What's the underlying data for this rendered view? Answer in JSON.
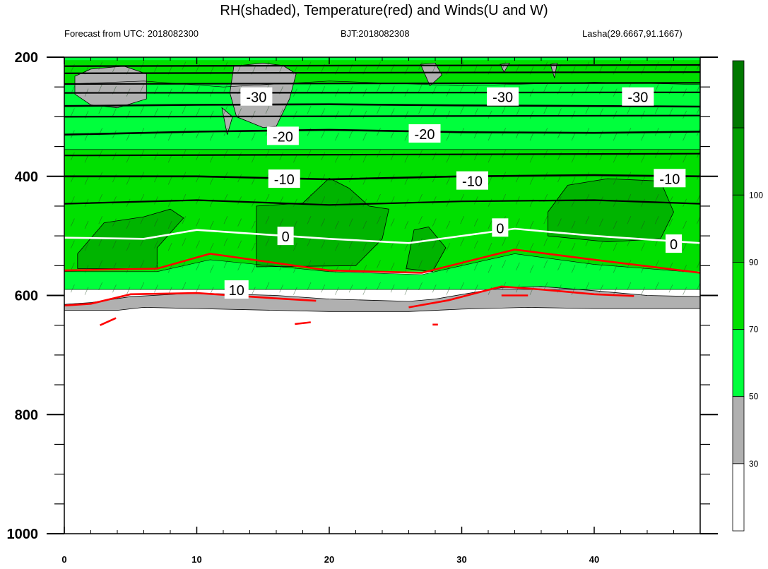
{
  "title": "RH(shaded), Temperature(red) and Winds(U and W)",
  "subtitle_left": "Forecast from UTC: 2018082300",
  "subtitle_center": "BJT:2018082308",
  "subtitle_right": "Lasha(29.6667,91.1667)",
  "chart_data": {
    "type": "contour",
    "xlabel": "",
    "ylabel": "",
    "xlim": [
      0,
      48
    ],
    "ylim": [
      200,
      1000
    ],
    "y_inverted": true,
    "x_ticks": [
      "0",
      "10",
      "20",
      "30",
      "40"
    ],
    "x_tick_values": [
      0,
      10,
      20,
      30,
      40
    ],
    "y_ticks": [
      "200",
      "400",
      "600",
      "800",
      "1000"
    ],
    "y_tick_values": [
      200,
      400,
      600,
      800,
      1000
    ],
    "grid": false,
    "colorbar": {
      "labels": [
        "30",
        "50",
        "70",
        "90",
        "100"
      ],
      "colors": [
        "#ffffff",
        "#b0b0b0",
        "#00ff3c",
        "#00e000",
        "#00b400",
        "#009e00",
        "#007800"
      ],
      "levels": [
        30,
        50,
        70,
        90,
        100
      ]
    },
    "colors": {
      "rh_below_30": "#ffffff",
      "rh_30_50": "#b0b0b0",
      "rh_50_70": "#00ff3c",
      "rh_70_90": "#00e000",
      "rh_90_100": "#00b400",
      "rh_above_100": "#007800",
      "temperature_below_zero": "#000000",
      "temperature_zero": "#ffffff",
      "temperature_above_zero": "#ff0000"
    },
    "temperature_contours": [
      {
        "label": "-30",
        "levels_shown": "-30",
        "pressure": [
          [
            0,
            282
          ],
          [
            10,
            280
          ],
          [
            20,
            279
          ],
          [
            30,
            281
          ],
          [
            40,
            282
          ],
          [
            48,
            283
          ]
        ]
      },
      {
        "label": "-20",
        "pressure": [
          [
            0,
            330
          ],
          [
            10,
            325
          ],
          [
            20,
            322
          ],
          [
            30,
            326
          ],
          [
            40,
            327
          ],
          [
            48,
            325
          ]
        ]
      },
      {
        "label": "-10",
        "pressure": [
          [
            0,
            400
          ],
          [
            10,
            400
          ],
          [
            20,
            405
          ],
          [
            30,
            400
          ],
          [
            40,
            398
          ],
          [
            48,
            400
          ]
        ]
      },
      {
        "label": "0",
        "pressure": [
          [
            0,
            503
          ],
          [
            6,
            505
          ],
          [
            10,
            490
          ],
          [
            20,
            505
          ],
          [
            26,
            512
          ],
          [
            34,
            488
          ],
          [
            40,
            500
          ],
          [
            48,
            512
          ]
        ]
      },
      {
        "label": "10",
        "pressure": [
          [
            0,
            558
          ],
          [
            7,
            555
          ],
          [
            11,
            530
          ],
          [
            20,
            558
          ],
          [
            27,
            562
          ],
          [
            34,
            523
          ],
          [
            40,
            540
          ],
          [
            48,
            562
          ]
        ]
      }
    ],
    "temperature_labels": [
      {
        "text": "-30",
        "x": 14.5,
        "y": 266
      },
      {
        "text": "-30",
        "x": 33.1,
        "y": 266
      },
      {
        "text": "-30",
        "x": 43.3,
        "y": 266
      },
      {
        "text": "-20",
        "x": 16.5,
        "y": 332
      },
      {
        "text": "-20",
        "x": 27.2,
        "y": 328
      },
      {
        "text": "-10",
        "x": 16.6,
        "y": 404
      },
      {
        "text": "-10",
        "x": 30.8,
        "y": 407
      },
      {
        "text": "-10",
        "x": 45.7,
        "y": 403
      },
      {
        "text": "0",
        "x": 16.7,
        "y": 500
      },
      {
        "text": "0",
        "x": 32.9,
        "y": 486
      },
      {
        "text": "0",
        "x": 46.0,
        "y": 513
      },
      {
        "text": "10",
        "x": 13.0,
        "y": 590
      }
    ]
  }
}
